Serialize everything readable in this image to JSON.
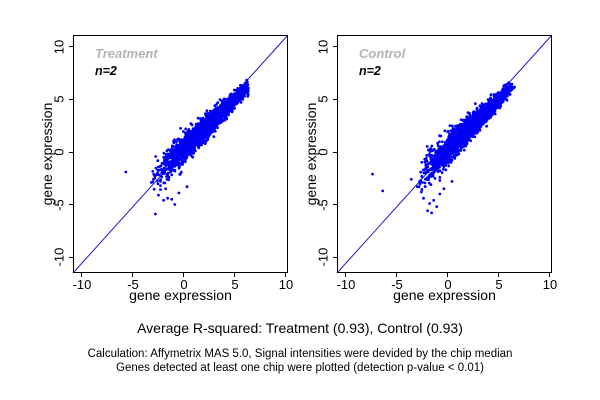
{
  "figure": {
    "background": "#ffffff",
    "point_color": "#0000f5",
    "diagonal_color": "#1c1ccd",
    "border_color": "#000000",
    "title_gray": "#b4b4b4"
  },
  "caption": {
    "line1": "Average R-squared: Treatment (0.93), Control (0.93)",
    "line2": "Calculation: Affymetrix MAS 5.0, Signal intensities were devided by the chip median",
    "line3": "Genes detected at least one chip were plotted (detection p-value < 0.01)"
  },
  "chart_data": [
    {
      "type": "scatter",
      "title": "Treatment",
      "annotation": "n=2",
      "xlabel": "gene expression",
      "ylabel": "gene expression",
      "xlim": [
        -10.88,
        10.2
      ],
      "ylim": [
        -11.52,
        11.14
      ],
      "xticks": [
        -10,
        -5,
        0,
        5,
        10
      ],
      "yticks": [
        -10,
        -5,
        0,
        5,
        10
      ],
      "reference_line": "y = x identity diagonal, corner to corner",
      "r_squared": 0.93,
      "note": "Dense replicate-vs-replicate cloud along the diagonal from about (-3,-3) to (6,6.3); funnel shape, wider spread at low expression; cloud sits slightly above the diagonal at low values. Individual gene points not resolvable; regenerated from summary parameters below plus visible outliers.",
      "cloud": {
        "seed": 424242,
        "count": 2600,
        "t_min": -3.3,
        "t_max": 6.3,
        "t_pow": 0.85,
        "upper_mix": 0.15,
        "upper_lo": 2.5,
        "upper_hi": 6.25,
        "sd_base": 0.26,
        "sd_low_extra": 0.55,
        "bias_above": 0.5,
        "x_jitter": 0.16
      },
      "outliers": [
        [
          -5.7,
          -1.9
        ],
        [
          -3.2,
          -2.9
        ],
        [
          -2.8,
          -5.9
        ],
        [
          -2.5,
          -4.1
        ],
        [
          -2.0,
          -4.6
        ],
        [
          -1.6,
          -4.4
        ],
        [
          -1.2,
          -4.5
        ],
        [
          -0.9,
          -5.0
        ],
        [
          -0.5,
          -3.9
        ],
        [
          0.3,
          -3.3
        ],
        [
          -1.8,
          -3.5
        ],
        [
          -2.3,
          -3.2
        ]
      ]
    },
    {
      "type": "scatter",
      "title": "Control",
      "annotation": "n=2",
      "xlabel": "gene expression",
      "ylabel": "gene expression",
      "xlim": [
        -10.88,
        10.2
      ],
      "ylim": [
        -11.52,
        11.14
      ],
      "xticks": [
        -10,
        -5,
        0,
        5,
        10
      ],
      "yticks": [
        -10,
        -5,
        0,
        5,
        10
      ],
      "reference_line": "y = x identity diagonal, corner to corner",
      "r_squared": 0.93,
      "note": "Cloud similar to Treatment, from about (-3,-2.5) to (6,6.2), with hanging sparse points below the diagonal near (-2,-5) and two isolated far-left outliers. Regenerated from summary parameters below plus visible outliers.",
      "cloud": {
        "seed": 987651,
        "count": 2600,
        "t_min": -3.1,
        "t_max": 6.2,
        "t_pow": 0.85,
        "upper_mix": 0.15,
        "upper_lo": 2.5,
        "upper_hi": 6.15,
        "sd_base": 0.27,
        "sd_low_extra": 0.62,
        "bias_above": 0.45,
        "x_jitter": 0.16
      },
      "outliers": [
        [
          -7.4,
          -2.1
        ],
        [
          -6.4,
          -3.7
        ],
        [
          -3.6,
          -2.6
        ],
        [
          -3.0,
          -3.3
        ],
        [
          -2.6,
          -3.8
        ],
        [
          -2.4,
          -4.4
        ],
        [
          -2.0,
          -5.6
        ],
        [
          -1.8,
          -4.9
        ],
        [
          -1.6,
          -5.8
        ],
        [
          -1.4,
          -4.6
        ],
        [
          -1.1,
          -5.2
        ],
        [
          -0.8,
          -4.0
        ],
        [
          -0.4,
          -3.5
        ],
        [
          0.4,
          -2.8
        ],
        [
          -0.8,
          -2.7
        ]
      ]
    }
  ]
}
